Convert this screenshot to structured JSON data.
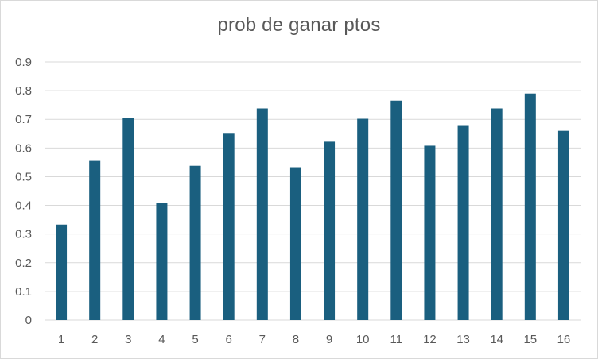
{
  "chart_data": {
    "type": "bar",
    "title": "prob de ganar ptos",
    "xlabel": "",
    "ylabel": "",
    "categories": [
      "1",
      "2",
      "3",
      "4",
      "5",
      "6",
      "7",
      "8",
      "9",
      "10",
      "11",
      "12",
      "13",
      "14",
      "15",
      "16"
    ],
    "values": [
      0.333,
      0.555,
      0.705,
      0.408,
      0.538,
      0.65,
      0.738,
      0.533,
      0.622,
      0.702,
      0.765,
      0.608,
      0.677,
      0.738,
      0.79,
      0.66
    ],
    "ylim": [
      0,
      0.9
    ],
    "yticks": [
      "0",
      "0.1",
      "0.2",
      "0.3",
      "0.4",
      "0.5",
      "0.6",
      "0.7",
      "0.8",
      "0.9"
    ],
    "grid": true,
    "legend": "none",
    "bar_color": "#1a5f7f",
    "grid_color": "#d9d9d9",
    "text_color": "#595959"
  }
}
